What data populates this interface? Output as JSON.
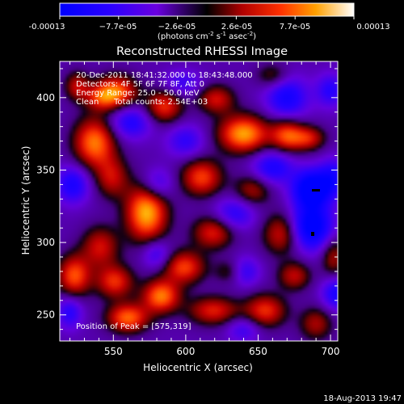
{
  "chart_data": {
    "type": "heatmap",
    "title": "Reconstructed RHESSI Image",
    "xlabel": "Heliocentric X (arcsec)",
    "ylabel": "Heliocentric Y (arcsec)",
    "xlim": [
      513,
      705
    ],
    "ylim": [
      232,
      425
    ],
    "x_ticks": [
      550,
      600,
      650,
      700
    ],
    "y_ticks": [
      250,
      300,
      350,
      400
    ],
    "colorbar": {
      "range": [
        -0.00013,
        0.00013
      ],
      "tick_labels": [
        "-0.00013",
        "−7.7e-05",
        "−2.6e-05",
        "2.6e-05",
        "7.7e-05",
        "0.00013"
      ],
      "units_line1": "(photons cm",
      "units_sup1": "-2",
      "units_line2": " s",
      "units_sup2": "-1",
      "units_line3": " asec",
      "units_sup3": "-2",
      "units_close": ")"
    },
    "annotations": {
      "time": "20-Dec-2011 18:41:32.000 to 18:43:48.000",
      "detectors": "Detectors: 4F 5F 6F 7F 8F, Att 0",
      "energy": "Energy Range: 25.0 - 50.0 keV",
      "clean": "Clean",
      "counts": "Total counts: 2.54E+03",
      "peak": "Position of Peak = [575,319]"
    },
    "peak": {
      "x": 575,
      "y": 319
    },
    "blobs": [
      {
        "x": 573,
        "y": 321,
        "v": 1.0,
        "sx": 10,
        "sy": 14
      },
      {
        "x": 537,
        "y": 369,
        "v": 0.85,
        "sx": 10,
        "sy": 12
      },
      {
        "x": 549,
        "y": 345,
        "v": 0.5,
        "sx": 8,
        "sy": 10
      },
      {
        "x": 552,
        "y": 404,
        "v": 0.8,
        "sx": 10,
        "sy": 8
      },
      {
        "x": 585,
        "y": 394,
        "v": 0.65,
        "sx": 9,
        "sy": 8
      },
      {
        "x": 541,
        "y": 400,
        "v": 0.45,
        "sx": 8,
        "sy": 6
      },
      {
        "x": 640,
        "y": 375,
        "v": 0.95,
        "sx": 12,
        "sy": 9
      },
      {
        "x": 670,
        "y": 374,
        "v": 0.7,
        "sx": 8,
        "sy": 8
      },
      {
        "x": 685,
        "y": 372,
        "v": 0.55,
        "sx": 8,
        "sy": 6
      },
      {
        "x": 621,
        "y": 399,
        "v": 0.55,
        "sx": 9,
        "sy": 7
      },
      {
        "x": 611,
        "y": 345,
        "v": 0.7,
        "sx": 10,
        "sy": 9
      },
      {
        "x": 646,
        "y": 336,
        "v": 0.45,
        "sx": 9,
        "sy": 8
      },
      {
        "x": 619,
        "y": 307,
        "v": 0.6,
        "sx": 10,
        "sy": 8
      },
      {
        "x": 599,
        "y": 283,
        "v": 0.7,
        "sx": 10,
        "sy": 8
      },
      {
        "x": 666,
        "y": 306,
        "v": 0.55,
        "sx": 9,
        "sy": 10
      },
      {
        "x": 541,
        "y": 297,
        "v": 0.55,
        "sx": 9,
        "sy": 10
      },
      {
        "x": 523,
        "y": 277,
        "v": 0.75,
        "sx": 8,
        "sy": 10
      },
      {
        "x": 551,
        "y": 273,
        "v": 0.65,
        "sx": 9,
        "sy": 8
      },
      {
        "x": 560,
        "y": 248,
        "v": 0.8,
        "sx": 10,
        "sy": 7
      },
      {
        "x": 583,
        "y": 263,
        "v": 0.85,
        "sx": 9,
        "sy": 8
      },
      {
        "x": 619,
        "y": 253,
        "v": 0.6,
        "sx": 12,
        "sy": 7
      },
      {
        "x": 655,
        "y": 253,
        "v": 0.65,
        "sx": 10,
        "sy": 8
      },
      {
        "x": 675,
        "y": 277,
        "v": 0.5,
        "sx": 8,
        "sy": 7
      },
      {
        "x": 525,
        "y": 408,
        "v": 0.5,
        "sx": 6,
        "sy": 7
      },
      {
        "x": 690,
        "y": 244,
        "v": 0.45,
        "sx": 8,
        "sy": 8
      },
      {
        "x": 702,
        "y": 290,
        "v": 0.45,
        "sx": 6,
        "sy": 10
      },
      {
        "x": 660,
        "y": 415,
        "v": 0.35,
        "sx": 8,
        "sy": 6
      },
      {
        "x": 630,
        "y": 280,
        "v": 0.3,
        "sx": 7,
        "sy": 6
      },
      {
        "x": 687,
        "y": 337,
        "v": -1.0,
        "sx": 9,
        "sy": 9
      },
      {
        "x": 687,
        "y": 311,
        "v": -0.9,
        "sx": 10,
        "sy": 11
      },
      {
        "x": 702,
        "y": 345,
        "v": -0.5,
        "sx": 7,
        "sy": 9
      },
      {
        "x": 704,
        "y": 265,
        "v": -0.55,
        "sx": 7,
        "sy": 8
      },
      {
        "x": 670,
        "y": 400,
        "v": -0.6,
        "sx": 10,
        "sy": 10
      },
      {
        "x": 660,
        "y": 352,
        "v": -0.55,
        "sx": 10,
        "sy": 8
      },
      {
        "x": 634,
        "y": 320,
        "v": -0.45,
        "sx": 10,
        "sy": 8
      },
      {
        "x": 562,
        "y": 383,
        "v": -0.5,
        "sx": 10,
        "sy": 8
      },
      {
        "x": 522,
        "y": 340,
        "v": -0.55,
        "sx": 8,
        "sy": 9
      },
      {
        "x": 580,
        "y": 340,
        "v": -0.45,
        "sx": 8,
        "sy": 8
      },
      {
        "x": 600,
        "y": 370,
        "v": -0.4,
        "sx": 9,
        "sy": 8
      },
      {
        "x": 598,
        "y": 410,
        "v": -0.35,
        "sx": 9,
        "sy": 6
      },
      {
        "x": 641,
        "y": 280,
        "v": -0.4,
        "sx": 7,
        "sy": 7
      },
      {
        "x": 580,
        "y": 292,
        "v": -0.4,
        "sx": 7,
        "sy": 7
      },
      {
        "x": 520,
        "y": 252,
        "v": -0.45,
        "sx": 6,
        "sy": 8
      },
      {
        "x": 640,
        "y": 240,
        "v": -0.35,
        "sx": 8,
        "sy": 6
      },
      {
        "x": 700,
        "y": 405,
        "v": -0.45,
        "sx": 7,
        "sy": 8
      }
    ]
  },
  "footer": {
    "timestamp": "18-Aug-2013 19:47"
  }
}
